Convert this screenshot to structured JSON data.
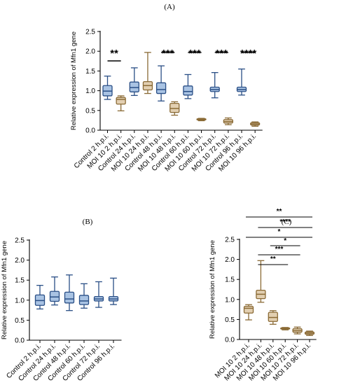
{
  "chart_data": [
    {
      "type": "boxplot",
      "panel_label": "(A)",
      "ylabel": "Relative expression of Mfn1 gene",
      "ylim": [
        0,
        2.5
      ],
      "yticks": [
        "0.0",
        "0.5",
        "1.0",
        "1.5",
        "2.0",
        "2.5"
      ],
      "categories": [
        "Control 2 h.p.i.",
        "MOI 10 2 h.p.i.",
        "Control 24 h.p.i.",
        "MOI 10 24 h.p.i.",
        "Control 48 h.p.i.",
        "MOI 10 48 h.p.i.",
        "Control 60 h.p.i.",
        "MOI 10 60 h.p.i.",
        "Control 72 h.p.i.",
        "MOI 10 72 h.p.i.",
        "Control 96 h.p.i.",
        "MOI 10 96 h.p.i."
      ],
      "groups": [
        "control",
        "moi",
        "control",
        "moi",
        "control",
        "moi",
        "control",
        "moi",
        "control",
        "moi",
        "control",
        "moi"
      ],
      "boxes": [
        {
          "min": 0.78,
          "q1": 0.87,
          "median": 0.99,
          "q3": 1.13,
          "max": 1.37
        },
        {
          "min": 0.49,
          "q1": 0.66,
          "median": 0.78,
          "q3": 0.83,
          "max": 0.87
        },
        {
          "min": 0.88,
          "q1": 0.97,
          "median": 1.08,
          "q3": 1.22,
          "max": 1.58
        },
        {
          "min": 0.93,
          "q1": 1.02,
          "median": 1.13,
          "q3": 1.23,
          "max": 1.97
        },
        {
          "min": 0.74,
          "q1": 0.93,
          "median": 1.03,
          "q3": 1.2,
          "max": 1.63
        },
        {
          "min": 0.38,
          "q1": 0.45,
          "median": 0.55,
          "q3": 0.68,
          "max": 0.72
        },
        {
          "min": 0.8,
          "q1": 0.89,
          "median": 0.98,
          "q3": 1.12,
          "max": 1.41
        },
        {
          "min": 0.24,
          "q1": 0.26,
          "median": 0.27,
          "q3": 0.29,
          "max": 0.3
        },
        {
          "min": 0.82,
          "q1": 0.98,
          "median": 1.03,
          "q3": 1.09,
          "max": 1.46
        },
        {
          "min": 0.14,
          "q1": 0.18,
          "median": 0.22,
          "q3": 0.27,
          "max": 0.31
        },
        {
          "min": 0.89,
          "q1": 0.98,
          "median": 1.03,
          "q3": 1.09,
          "max": 1.55
        },
        {
          "min": 0.1,
          "q1": 0.13,
          "median": 0.16,
          "q3": 0.19,
          "max": 0.21
        }
      ],
      "significance": [
        {
          "from": 0,
          "to": 1,
          "label": "**"
        },
        {
          "from": 4,
          "to": 5,
          "label": "***"
        },
        {
          "from": 6,
          "to": 7,
          "label": "***"
        },
        {
          "from": 8,
          "to": 9,
          "label": "***"
        },
        {
          "from": 10,
          "to": 11,
          "label": "****"
        }
      ]
    },
    {
      "type": "boxplot",
      "panel_label": "(B)",
      "ylabel": "Relative expression of Mfn1 gene",
      "ylim": [
        0,
        2.5
      ],
      "yticks": [
        "0.0",
        "0.5",
        "1.0",
        "1.5",
        "2.0",
        "2.5"
      ],
      "categories": [
        "Control 2 h.p.i.",
        "Control 24 h.p.i.",
        "Control 48 h.p.i.",
        "Control 60 h.p.i.",
        "Control 72 h.p.i.",
        "Control 96 h.p.i."
      ],
      "groups": [
        "control",
        "control",
        "control",
        "control",
        "control",
        "control"
      ],
      "boxes": [
        {
          "min": 0.78,
          "q1": 0.87,
          "median": 0.99,
          "q3": 1.13,
          "max": 1.37
        },
        {
          "min": 0.88,
          "q1": 0.97,
          "median": 1.08,
          "q3": 1.22,
          "max": 1.58
        },
        {
          "min": 0.74,
          "q1": 0.93,
          "median": 1.03,
          "q3": 1.2,
          "max": 1.63
        },
        {
          "min": 0.8,
          "q1": 0.89,
          "median": 0.98,
          "q3": 1.12,
          "max": 1.41
        },
        {
          "min": 0.82,
          "q1": 0.98,
          "median": 1.03,
          "q3": 1.09,
          "max": 1.46
        },
        {
          "min": 0.89,
          "q1": 0.98,
          "median": 1.03,
          "q3": 1.09,
          "max": 1.55
        }
      ],
      "significance": []
    },
    {
      "type": "boxplot",
      "panel_label": "(C)",
      "ylabel": "Relative expression of Mfn1 gene",
      "ylim": [
        0,
        2.5
      ],
      "yticks": [
        "0.0",
        "0.5",
        "1.0",
        "1.5",
        "2.0",
        "2.5"
      ],
      "categories": [
        "MOI 10 2 h.p.i.",
        "MOI 10 24 h.p.i.",
        "MOI 10 48 h.p.i.",
        "MOI 10 60 h.p.i.",
        "MOI 10 72 h.p.i.",
        "MOI 10 96 h.p.i."
      ],
      "groups": [
        "moi",
        "moi",
        "moi",
        "moi",
        "moi",
        "moi"
      ],
      "boxes": [
        {
          "min": 0.49,
          "q1": 0.66,
          "median": 0.78,
          "q3": 0.83,
          "max": 0.87
        },
        {
          "min": 0.93,
          "q1": 1.02,
          "median": 1.13,
          "q3": 1.23,
          "max": 1.97
        },
        {
          "min": 0.38,
          "q1": 0.45,
          "median": 0.55,
          "q3": 0.68,
          "max": 0.72
        },
        {
          "min": 0.24,
          "q1": 0.26,
          "median": 0.27,
          "q3": 0.29,
          "max": 0.3
        },
        {
          "min": 0.14,
          "q1": 0.18,
          "median": 0.22,
          "q3": 0.27,
          "max": 0.31
        },
        {
          "min": 0.1,
          "q1": 0.13,
          "median": 0.16,
          "q3": 0.19,
          "max": 0.21
        }
      ],
      "significance": [
        {
          "from": 1,
          "to": 3,
          "label": "**"
        },
        {
          "from": 1,
          "to": 4,
          "label": "***"
        },
        {
          "from": 2,
          "to": 4,
          "label": "*"
        },
        {
          "from": 0,
          "to": 5,
          "label": "*"
        },
        {
          "from": 1,
          "to": 5,
          "label": "****"
        },
        {
          "from": 0,
          "to": 5,
          "label": "**"
        }
      ]
    }
  ],
  "colors": {
    "control_fill": "#a9c3e3",
    "control_stroke": "#2a4f86",
    "moi_fill": "#e2cfb1",
    "moi_stroke": "#8a6a35",
    "axis": "#000000"
  }
}
